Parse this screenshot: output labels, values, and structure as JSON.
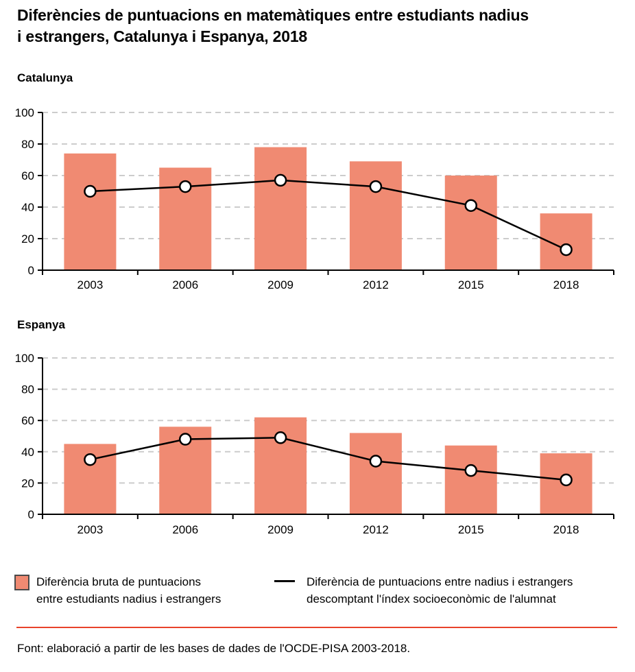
{
  "title": {
    "lines": [
      "Diferències de puntuacions en matemàtiques entre estudiants nadius",
      "i estrangers, Catalunya i Espanya, 2018"
    ]
  },
  "chart_data": [
    {
      "type": "bar",
      "title": "Catalunya",
      "categories": [
        "2003",
        "2006",
        "2009",
        "2012",
        "2015",
        "2018"
      ],
      "series": [
        {
          "name": "Diferència bruta de puntuacions entre estudiants nadius i estrangers",
          "type": "bar",
          "values": [
            74,
            65,
            78,
            69,
            60,
            36
          ]
        },
        {
          "name": "Diferència de puntuacions entre nadius i estrangers descomptant l'índex socioeconòmic de l'alumnat",
          "type": "line",
          "values": [
            50,
            53,
            57,
            53,
            41,
            13
          ]
        }
      ],
      "xlabel": "",
      "ylabel": "",
      "ylim": [
        0,
        100
      ],
      "yticks": [
        0,
        20,
        40,
        60,
        80,
        100
      ],
      "grid": true
    },
    {
      "type": "bar",
      "title": "Espanya",
      "categories": [
        "2003",
        "2006",
        "2009",
        "2012",
        "2015",
        "2018"
      ],
      "series": [
        {
          "name": "Diferència bruta de puntuacions entre estudiants nadius i estrangers",
          "type": "bar",
          "values": [
            45,
            56,
            62,
            52,
            44,
            39
          ]
        },
        {
          "name": "Diferència de puntuacions entre nadius i estrangers descomptant l'índex socioeconòmic de l'alumnat",
          "type": "line",
          "values": [
            35,
            48,
            49,
            34,
            28,
            22
          ]
        }
      ],
      "xlabel": "",
      "ylabel": "",
      "ylim": [
        0,
        100
      ],
      "yticks": [
        0,
        20,
        40,
        60,
        80,
        100
      ],
      "grid": true
    }
  ],
  "legend": {
    "bar": {
      "lines": [
        "Diferència bruta de puntuacions",
        "entre estudiants nadius i estrangers"
      ]
    },
    "line": {
      "lines": [
        "Diferència de puntuacions entre nadius i estrangers",
        "descomptant l'índex socioeconòmic de l'alumnat"
      ]
    }
  },
  "footer": {
    "source": "Font: elaboració a partir de les bases de dades de l'OCDE-PISA 2003-2018."
  },
  "colors": {
    "bar": "#f08a72",
    "line": "#000000",
    "marker_fill": "#ffffff",
    "grid": "#cccccc",
    "axis": "#000000",
    "accent_rule": "#e8432a",
    "swatch_border": "#4a4a4a"
  }
}
